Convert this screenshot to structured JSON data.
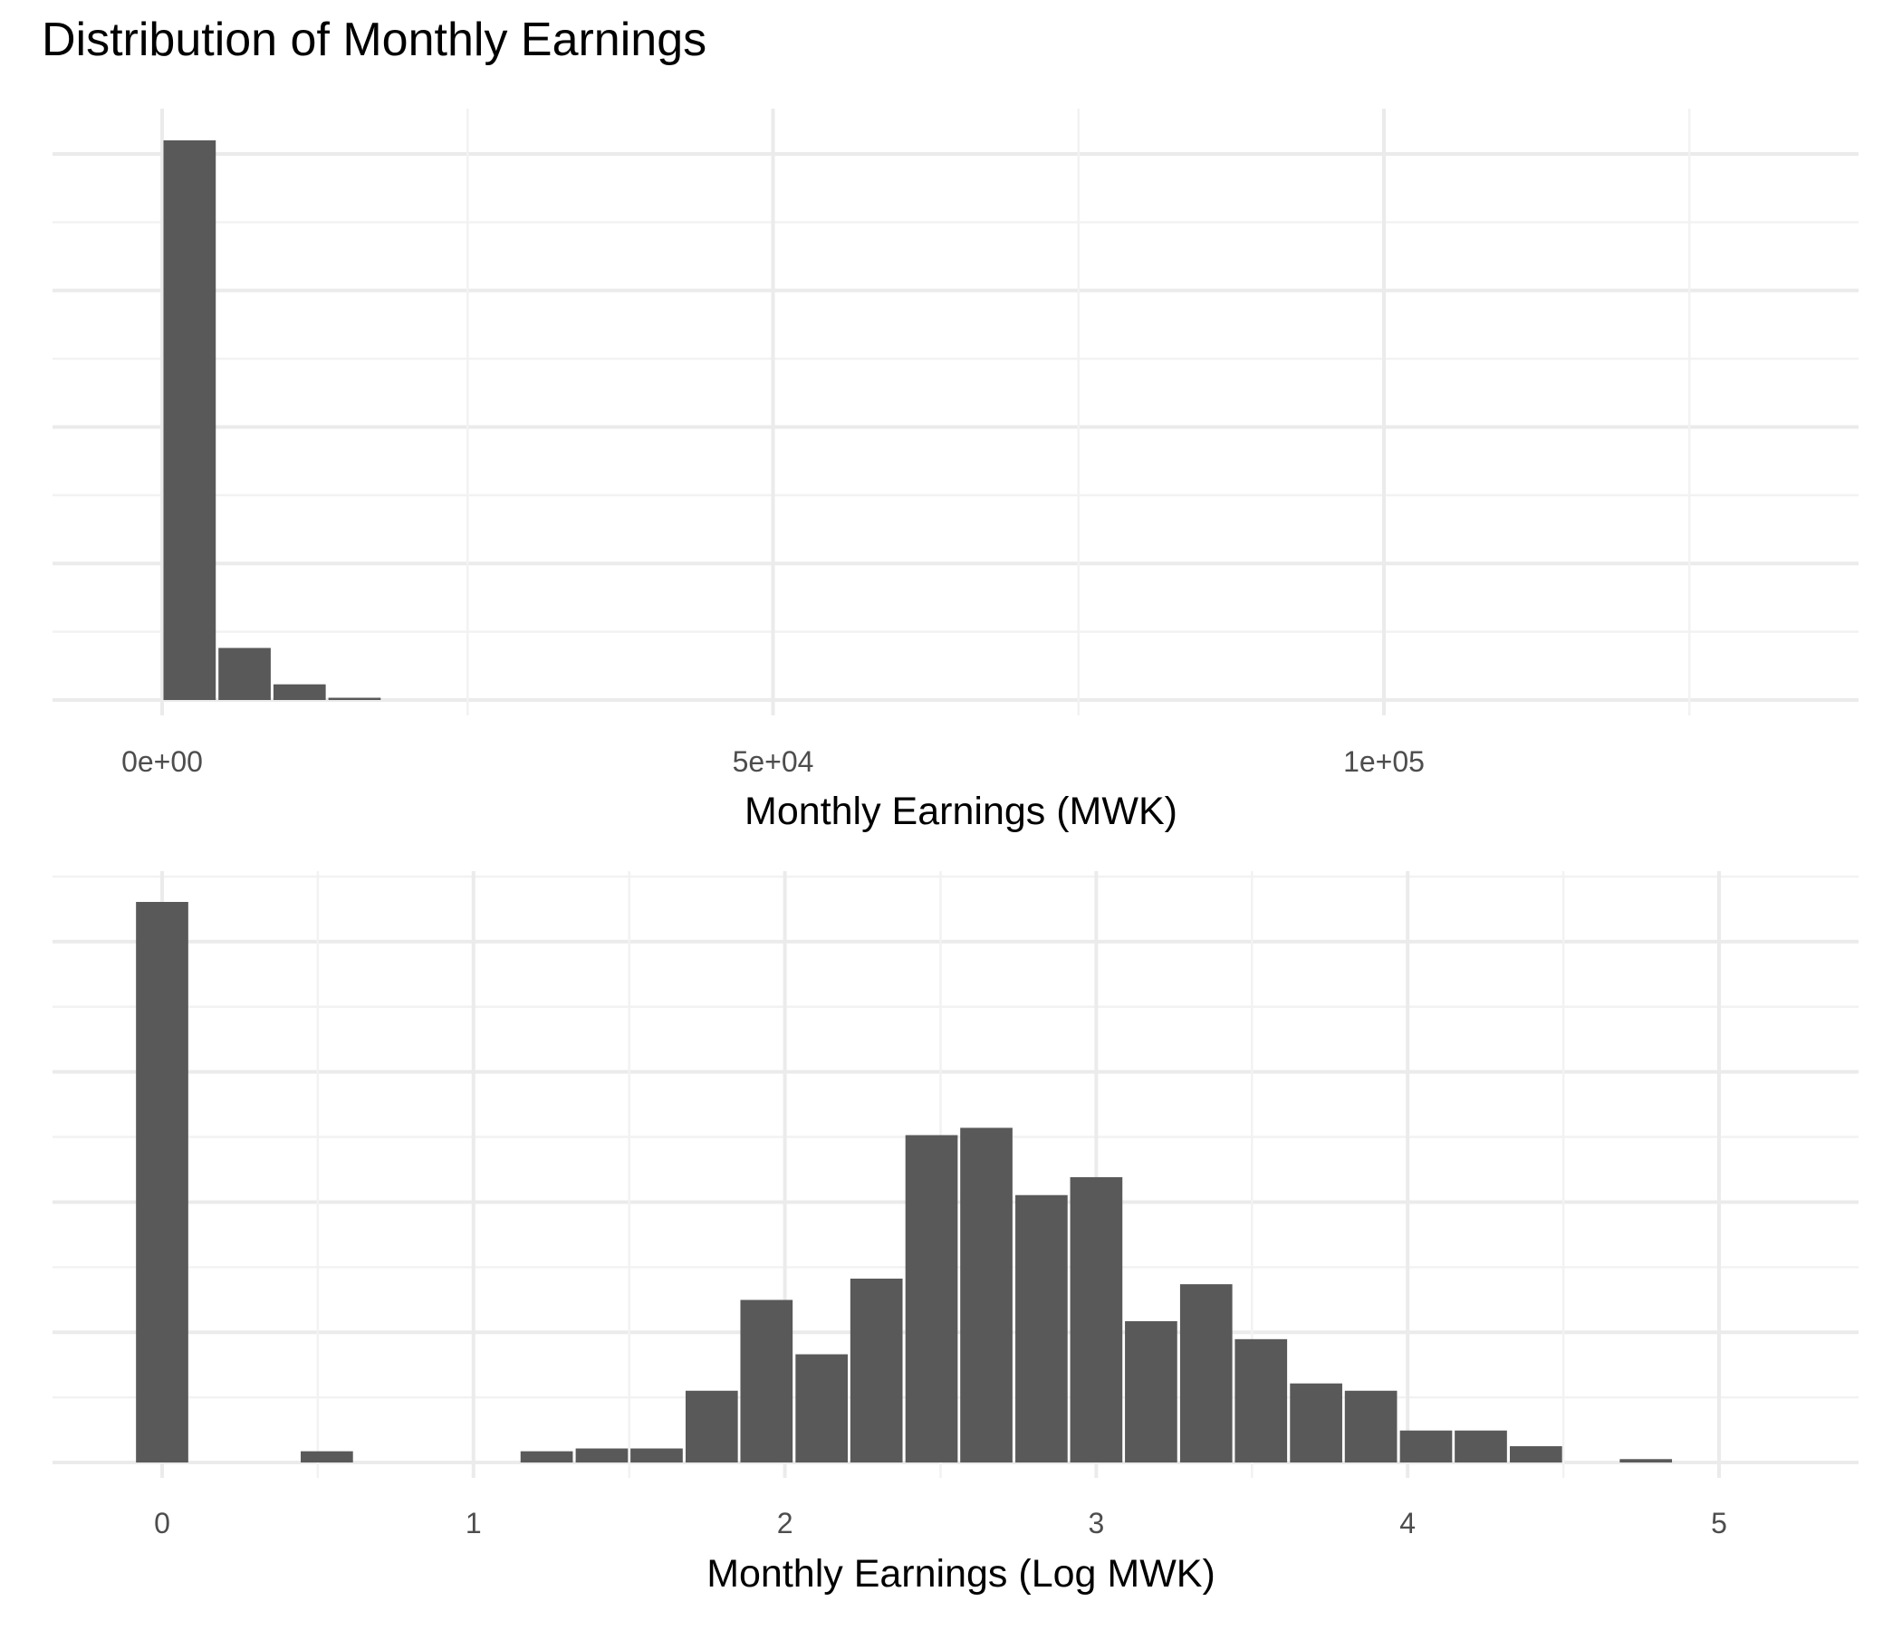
{
  "title": "Distribution of Monthly Earnings",
  "colors": {
    "bar": "#595959",
    "grid_major": "#ebebeb",
    "grid_minor": "#f2f2f2",
    "background": "#ffffff"
  },
  "chart_data": [
    {
      "type": "histogram",
      "title": "Distribution of Monthly Earnings",
      "xlabel": "Monthly Earnings (MWK)",
      "ylabel": "",
      "x_ticks": [
        "0e+00",
        "5e+04",
        "1e+05"
      ],
      "x_tick_values": [
        0,
        50000,
        100000
      ],
      "xlim": [
        -9000,
        139000
      ],
      "y_ticks_shown": false,
      "grid": true,
      "bin_width": 4500,
      "bins_start": [
        0,
        4500,
        9000,
        13500
      ],
      "counts_relative": [
        1.0,
        0.093,
        0.028,
        0.004
      ]
    },
    {
      "type": "histogram",
      "xlabel": "Monthly Earnings (Log MWK)",
      "ylabel": "",
      "x_ticks": [
        "0",
        "1",
        "2",
        "3",
        "4",
        "5"
      ],
      "x_tick_values": [
        0,
        1,
        2,
        3,
        4,
        5
      ],
      "xlim": [
        -0.35,
        5.45
      ],
      "y_ticks_shown": false,
      "grid": true,
      "bin_width": 0.1765,
      "bins_center": [
        0,
        0.529,
        1.235,
        1.412,
        1.588,
        1.765,
        1.941,
        2.118,
        2.294,
        2.471,
        2.647,
        2.824,
        3.0,
        3.176,
        3.353,
        3.529,
        3.706,
        3.882,
        4.059,
        4.235,
        4.412,
        4.765
      ],
      "counts_relative": [
        1.0,
        0.02,
        0.02,
        0.025,
        0.025,
        0.128,
        0.29,
        0.193,
        0.328,
        0.584,
        0.597,
        0.477,
        0.509,
        0.252,
        0.318,
        0.22,
        0.141,
        0.128,
        0.057,
        0.057,
        0.029,
        0.006
      ]
    }
  ]
}
